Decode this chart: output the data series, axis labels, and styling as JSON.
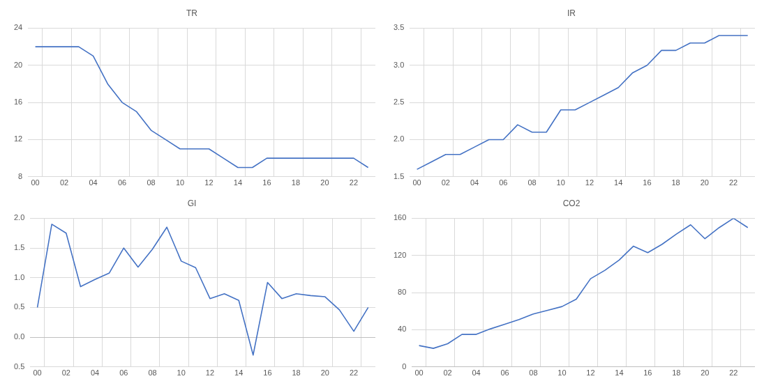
{
  "chart_data": [
    {
      "type": "line",
      "title": "TR",
      "categories": [
        "00",
        null,
        "02",
        null,
        "04",
        null,
        "06",
        null,
        "08",
        null,
        "10",
        null,
        "12",
        null,
        "14",
        null,
        "16",
        null,
        "18",
        null,
        "20",
        null,
        "22",
        null
      ],
      "values": [
        22,
        22,
        22,
        22,
        21,
        18,
        16,
        15,
        13,
        12,
        11,
        11,
        11,
        10,
        9,
        9,
        10,
        10,
        10,
        10,
        10,
        10,
        10,
        9
      ],
      "color": "#4472c4",
      "ylim": [
        8,
        24
      ],
      "yticks": [
        8,
        12,
        16,
        20,
        24
      ],
      "grid": true
    },
    {
      "type": "line",
      "title": "IR",
      "categories": [
        "00",
        null,
        "02",
        null,
        "04",
        null,
        "06",
        null,
        "08",
        null,
        "10",
        null,
        "12",
        null,
        "14",
        null,
        "16",
        null,
        "18",
        null,
        "20",
        null,
        "22",
        null
      ],
      "values": [
        1.6,
        1.7,
        1.8,
        1.8,
        1.9,
        2.0,
        2.0,
        2.2,
        2.1,
        2.1,
        2.4,
        2.4,
        2.5,
        2.6,
        2.7,
        2.9,
        3.0,
        3.2,
        3.2,
        3.3,
        3.3,
        3.4,
        3.4,
        3.4
      ],
      "color": "#4472c4",
      "ylim": [
        1.5,
        3.5
      ],
      "yticks": [
        {
          "value": 1.5,
          "label": "1.5"
        },
        {
          "value": 2,
          "label": "2.0"
        },
        {
          "value": 2.5,
          "label": "2.5"
        },
        {
          "value": 3,
          "label": "3.0"
        },
        {
          "value": 3.5,
          "label": "3.5"
        }
      ],
      "grid": true
    },
    {
      "type": "line",
      "title": "GI",
      "categories": [
        "00",
        null,
        "02",
        null,
        "04",
        null,
        "06",
        null,
        "08",
        null,
        "10",
        null,
        "12",
        null,
        "14",
        null,
        "16",
        null,
        "18",
        null,
        "20",
        null,
        "22",
        null
      ],
      "values": [
        0.5,
        1.9,
        1.75,
        0.85,
        0.97,
        1.08,
        1.5,
        1.18,
        1.48,
        1.85,
        1.28,
        1.17,
        0.65,
        0.73,
        0.62,
        -0.3,
        0.92,
        0.65,
        0.73,
        0.7,
        0.68,
        0.46,
        0.1,
        0.5
      ],
      "color": "#4472c4",
      "ylim": [
        -0.5,
        2
      ],
      "yticks": [
        {
          "value": -0.5,
          "label": "0.5"
        },
        {
          "value": 0,
          "label": "0.0"
        },
        {
          "value": 0.5,
          "label": "0.5"
        },
        {
          "value": 1,
          "label": "1.0"
        },
        {
          "value": 1.5,
          "label": "1.5"
        },
        {
          "value": 2,
          "label": "2.0"
        }
      ],
      "grid": true
    },
    {
      "type": "line",
      "title": "CO2",
      "categories": [
        "00",
        null,
        "02",
        null,
        "04",
        null,
        "06",
        null,
        "08",
        null,
        "10",
        null,
        "12",
        null,
        "14",
        null,
        "16",
        null,
        "18",
        null,
        "20",
        null,
        "22",
        null
      ],
      "values": [
        23,
        20,
        25,
        35,
        35,
        41,
        46,
        51,
        57,
        61,
        65,
        73,
        95,
        104,
        115,
        130,
        123,
        132,
        143,
        153,
        138,
        150,
        160,
        150
      ],
      "color": "#4472c4",
      "ylim": [
        0,
        160
      ],
      "yticks": [
        0,
        40,
        80,
        120,
        160
      ],
      "grid": true
    }
  ]
}
